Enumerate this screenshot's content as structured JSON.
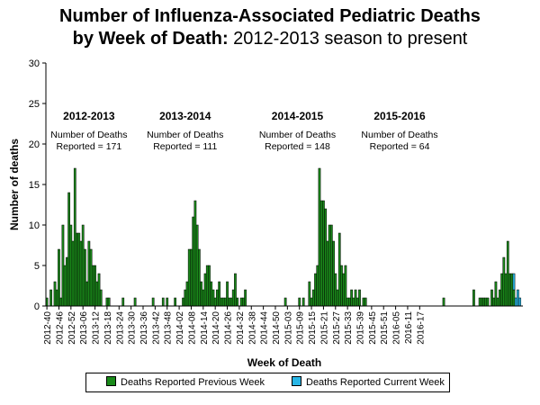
{
  "chart_data": {
    "type": "bar",
    "title_bold": "Number of Influenza-Associated Pediatric Deaths",
    "title_line2_bold": "by Week of Death:",
    "title_line2_normal": "2012-2013 season to present",
    "xlabel": "Week of Death",
    "ylabel": "Number of deaths",
    "ylim": [
      0,
      30
    ],
    "yticks": [
      0,
      5,
      10,
      15,
      20,
      25,
      30
    ],
    "xticks": [
      "2012-40",
      "2012-46",
      "2012-52",
      "2013-06",
      "2013-12",
      "2013-18",
      "2013-24",
      "2013-30",
      "2013-36",
      "2013-42",
      "2013-48",
      "2014-02",
      "2014-08",
      "2014-14",
      "2014-20",
      "2014-26",
      "2014-32",
      "2014-38",
      "2014-44",
      "2014-50",
      "2015-03",
      "2015-09",
      "2015-15",
      "2015-21",
      "2015-27",
      "2015-33",
      "2015-39",
      "2015-45",
      "2015-51",
      "2016-05",
      "2016-11",
      "2016-17"
    ],
    "series": [
      {
        "name": "Deaths Reported Previous Week",
        "color": "#1a8a1a",
        "values": [
          1,
          0,
          2,
          0,
          3,
          2,
          7,
          1,
          10,
          5,
          6,
          14,
          10,
          8,
          17,
          9,
          9,
          8,
          10,
          7,
          3,
          8,
          7,
          5,
          5,
          3,
          4,
          2,
          0,
          0,
          1,
          1,
          0,
          0,
          0,
          0,
          0,
          0,
          1,
          0,
          0,
          0,
          0,
          0,
          1,
          0,
          0,
          0,
          0,
          0,
          0,
          0,
          0,
          1,
          0,
          0,
          0,
          0,
          1,
          0,
          1,
          0,
          0,
          0,
          1,
          0,
          0,
          0,
          1,
          2,
          3,
          7,
          7,
          11,
          13,
          10,
          7,
          3,
          2,
          4,
          5,
          5,
          3,
          2,
          1,
          2,
          3,
          1,
          1,
          1,
          3,
          1,
          1,
          2,
          4,
          1,
          0,
          1,
          1,
          2,
          0,
          0,
          0,
          0,
          0,
          0,
          0,
          0,
          0,
          0,
          0,
          0,
          0,
          0,
          0,
          0,
          0,
          0,
          0,
          1,
          0,
          0,
          0,
          0,
          0,
          0,
          1,
          0,
          1,
          0,
          0,
          3,
          1,
          2,
          4,
          5,
          17,
          13,
          13,
          12,
          8,
          10,
          10,
          8,
          4,
          2,
          9,
          5,
          4,
          5,
          1,
          1,
          2,
          1,
          2,
          1,
          2,
          0,
          1,
          1,
          0,
          0,
          0,
          0,
          0,
          0,
          0,
          0,
          0,
          0,
          0,
          0,
          0,
          0,
          0,
          0,
          0,
          0,
          0,
          0,
          0,
          0,
          0,
          0,
          0,
          0,
          0,
          0,
          0,
          0,
          0,
          0,
          0,
          0,
          0,
          0,
          0,
          0,
          1,
          0,
          0,
          0,
          0,
          0,
          0,
          0,
          0,
          0,
          0,
          0,
          0,
          0,
          0,
          2,
          0,
          0,
          1,
          1,
          1,
          1,
          1,
          0,
          2,
          1,
          3,
          1,
          2,
          4,
          6,
          4,
          8,
          4,
          4,
          2,
          0,
          0,
          0,
          0
        ]
      },
      {
        "name": "Deaths Reported Current Week",
        "color": "#29b6e6",
        "values": [
          0,
          0,
          0,
          0,
          0,
          0,
          0,
          0,
          0,
          0,
          0,
          0,
          0,
          0,
          0,
          0,
          0,
          0,
          0,
          0,
          0,
          0,
          0,
          0,
          0,
          0,
          0,
          0,
          0,
          0,
          0,
          0,
          0,
          0,
          0,
          0,
          0,
          0,
          0,
          0,
          0,
          0,
          0,
          0,
          0,
          0,
          0,
          0,
          0,
          0,
          0,
          0,
          0,
          0,
          0,
          0,
          0,
          0,
          0,
          0,
          0,
          0,
          0,
          0,
          0,
          0,
          0,
          0,
          0,
          0,
          0,
          0,
          0,
          0,
          0,
          0,
          0,
          0,
          0,
          0,
          0,
          0,
          0,
          0,
          0,
          0,
          0,
          0,
          0,
          0,
          0,
          0,
          0,
          0,
          0,
          0,
          0,
          0,
          0,
          0,
          0,
          0,
          0,
          0,
          0,
          0,
          0,
          0,
          0,
          0,
          0,
          0,
          0,
          0,
          0,
          0,
          0,
          0,
          0,
          0,
          0,
          0,
          0,
          0,
          0,
          0,
          0,
          0,
          0,
          0,
          0,
          0,
          0,
          0,
          0,
          0,
          0,
          0,
          0,
          0,
          0,
          0,
          0,
          0,
          0,
          0,
          0,
          0,
          0,
          0,
          0,
          0,
          0,
          0,
          0,
          0,
          0,
          0,
          0,
          0,
          0,
          0,
          0,
          0,
          0,
          0,
          0,
          0,
          0,
          0,
          0,
          0,
          0,
          0,
          0,
          0,
          0,
          0,
          0,
          0,
          0,
          0,
          0,
          0,
          0,
          0,
          0,
          0,
          0,
          0,
          0,
          0,
          0,
          0,
          0,
          0,
          0,
          0,
          0,
          0,
          0,
          0,
          0,
          0,
          0,
          0,
          0,
          0,
          0,
          0,
          0,
          0,
          0,
          0,
          0,
          0,
          0,
          0,
          0,
          0,
          0,
          0,
          0,
          0,
          0,
          0,
          0,
          0,
          0,
          0,
          0,
          0,
          0,
          2,
          1,
          2,
          1,
          0
        ]
      }
    ],
    "annotations": [
      {
        "season": "2012-2013",
        "line1": "Number of Deaths",
        "line2": "Reported = 171",
        "week": "2013-09"
      },
      {
        "season": "2013-2014",
        "line1": "Number of Deaths",
        "line2": "Reported = 111",
        "week": "2014-05"
      },
      {
        "season": "2014-2015",
        "line1": "Number of Deaths",
        "line2": "Reported = 148",
        "week": "2015-08"
      },
      {
        "season": "2015-2016",
        "line1": "Number of Deaths",
        "line2": "Reported = 64",
        "week": "2016-07"
      }
    ],
    "grid": false,
    "legend_position": "bottom"
  }
}
